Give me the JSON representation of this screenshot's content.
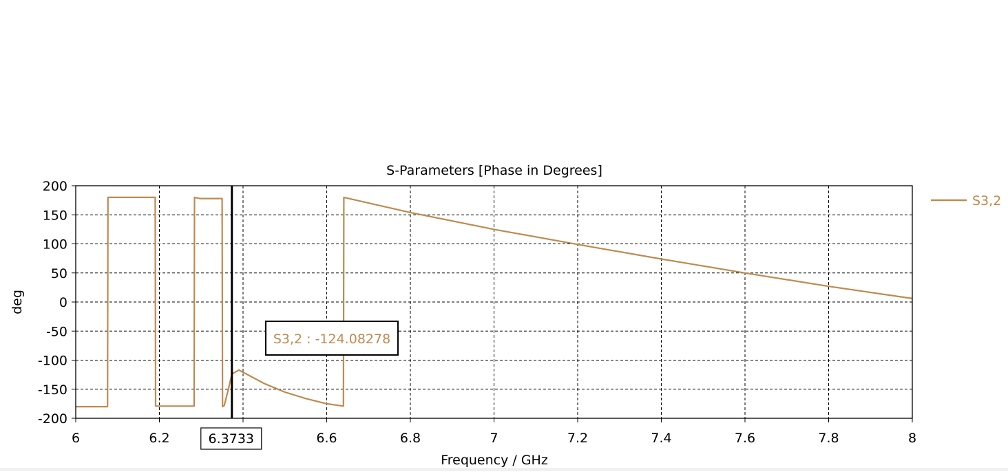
{
  "chart_data": {
    "type": "line",
    "title": "S-Parameters [Phase in Degrees]",
    "xlabel": "Frequency / GHz",
    "ylabel": "deg",
    "xlim": [
      6,
      8
    ],
    "ylim": [
      -200,
      200
    ],
    "x_ticks": [
      6,
      6.2,
      6.4,
      6.6,
      6.8,
      7,
      7.2,
      7.4,
      7.6,
      7.8,
      8
    ],
    "x_tick_labels": [
      "6",
      "6.2",
      "",
      "6.6",
      "6.8",
      "7",
      "7.2",
      "7.4",
      "7.6",
      "7.8",
      "8"
    ],
    "y_ticks": [
      200,
      150,
      100,
      50,
      0,
      -50,
      -100,
      -150,
      -200
    ],
    "y_tick_labels": [
      "200",
      "150",
      "100",
      "50",
      "0",
      "-50",
      "-100",
      "-150",
      "-200"
    ],
    "grid": true,
    "legend_position": "right",
    "line_color": "#bf8a4e",
    "series": [
      {
        "name": "S3,2",
        "x": [
          6.0,
          6.076,
          6.077,
          6.19,
          6.191,
          6.283,
          6.284,
          6.297,
          6.35,
          6.351,
          6.355,
          6.365,
          6.3733,
          6.39,
          6.45,
          6.5,
          6.55,
          6.6,
          6.64,
          6.641,
          6.8,
          7.0,
          7.2,
          7.4,
          7.6,
          7.8,
          8.0
        ],
        "y": [
          -180,
          -180,
          180,
          180,
          -179,
          -179,
          180,
          178,
          178,
          -180,
          -178,
          -150,
          -124.08,
          -117,
          -140,
          -155,
          -166,
          -175,
          -179,
          180,
          154,
          125,
          99,
          74,
          50,
          27,
          6
        ]
      }
    ],
    "marker": {
      "x_label": "6.3733",
      "x_value": 6.3733,
      "annotation": "S3,2 : -124.08278"
    }
  }
}
